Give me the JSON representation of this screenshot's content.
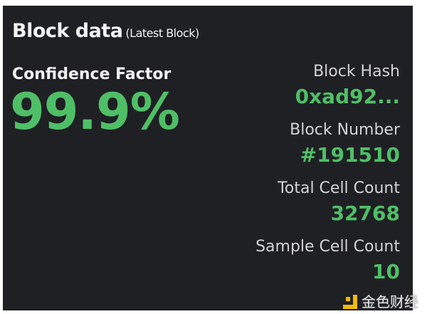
{
  "header": {
    "title": "Block data",
    "subtitle": "(Latest Block)"
  },
  "confidence": {
    "label": "Confidence Factor",
    "value": "99.9%"
  },
  "stats": [
    {
      "label": "Block Hash",
      "value": "0xad92..."
    },
    {
      "label": "Block Number",
      "value": "#191510"
    },
    {
      "label": "Total Cell Count",
      "value": "32768"
    },
    {
      "label": "Sample Cell Count",
      "value": "10"
    }
  ],
  "watermark": {
    "text": "金色财经"
  },
  "colors": {
    "background": "#1f2024",
    "accent": "#4fbf67",
    "text": "#f2f2f2"
  }
}
